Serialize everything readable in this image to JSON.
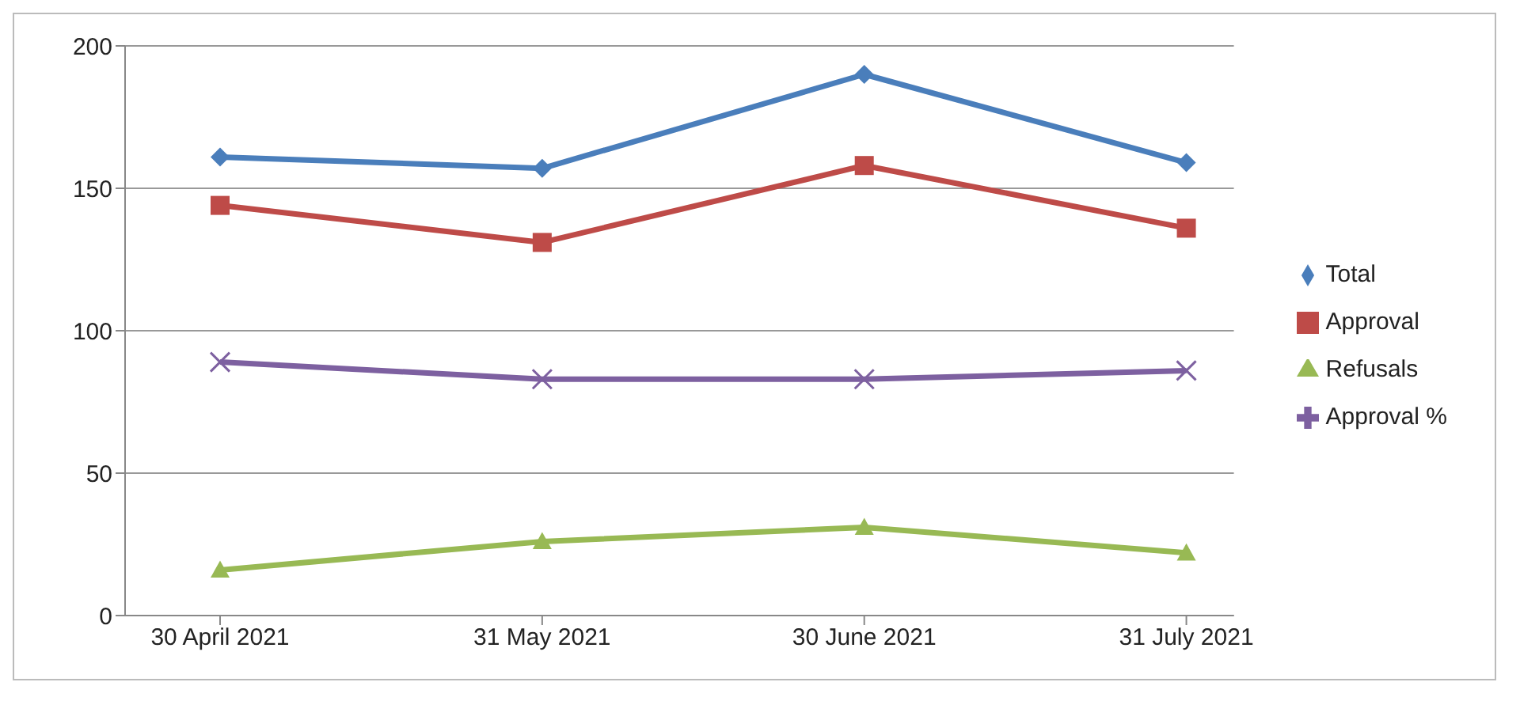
{
  "chart_data": {
    "type": "line",
    "categories": [
      "30 April 2021",
      "31 May 2021",
      "30 June 2021",
      "31 July 2021"
    ],
    "series": [
      {
        "name": "Total",
        "color": "#4a7ebb",
        "marker": "diamond",
        "values": [
          161,
          157,
          190,
          159
        ]
      },
      {
        "name": "Approval",
        "color": "#be4b48",
        "marker": "square",
        "values": [
          144,
          131,
          158,
          136
        ]
      },
      {
        "name": "Refusals",
        "color": "#98b954",
        "marker": "triangle",
        "values": [
          16,
          26,
          31,
          22
        ]
      },
      {
        "name": "Approval  %",
        "color": "#7d60a0",
        "marker": "cross",
        "values": [
          89,
          83,
          83,
          86
        ]
      }
    ],
    "ylim": [
      0,
      200
    ],
    "yticks": [
      0,
      50,
      100,
      150,
      200
    ],
    "grid": "y",
    "legend": "right"
  }
}
